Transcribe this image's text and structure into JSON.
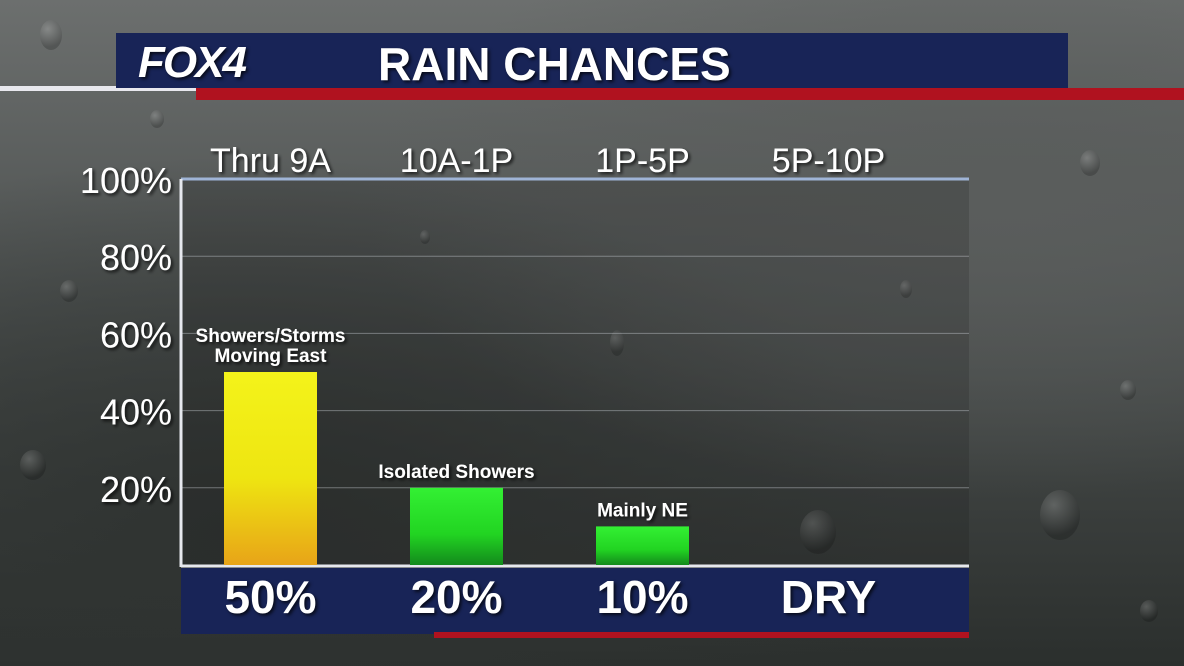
{
  "header": {
    "logo": "FOX4",
    "title": "RAIN CHANCES"
  },
  "colors": {
    "header_bar": "#182457",
    "accent_red": "#b0121f",
    "bar_yellow": "#f2f016",
    "bar_green": "#2ee82e"
  },
  "chart_data": {
    "type": "bar",
    "categories": [
      "Thru 9A",
      "10A-1P",
      "1P-5P",
      "5P-10P"
    ],
    "values": [
      50,
      20,
      10,
      0
    ],
    "ylim": [
      0,
      100
    ],
    "yticks": [
      "100%",
      "80%",
      "60%",
      "40%",
      "20%"
    ],
    "ytick_values": [
      100,
      80,
      60,
      40,
      20
    ],
    "grid": true,
    "annotations": [
      {
        "line1": "Showers/Storms",
        "line2": "Moving East"
      },
      {
        "line1": "Isolated Showers",
        "line2": ""
      },
      {
        "line1": "Mainly NE",
        "line2": ""
      },
      {
        "line1": "",
        "line2": ""
      }
    ],
    "value_labels": [
      "50%",
      "20%",
      "10%",
      "DRY"
    ]
  }
}
